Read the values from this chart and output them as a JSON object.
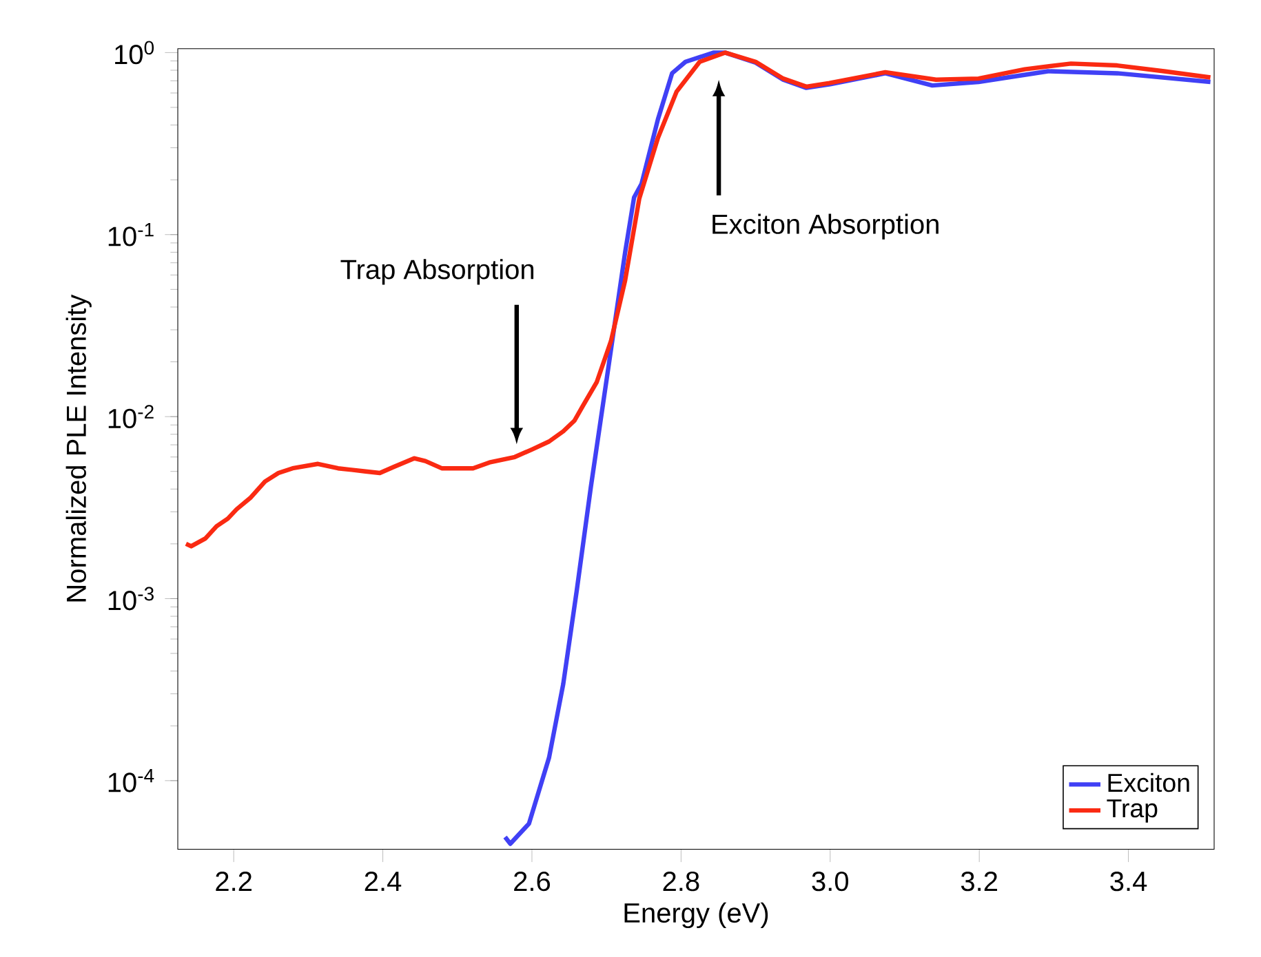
{
  "chart_data": {
    "type": "line",
    "xlabel": "Energy (eV)",
    "ylabel": "Normalized PLE Intensity",
    "xlim": [
      2.125,
      3.515
    ],
    "ylim": [
      4.2e-05,
      1.05
    ],
    "log": "y",
    "legend": "bottom right",
    "xticks": [
      2.2,
      2.4,
      2.6,
      2.8,
      {
        "value": 3.0,
        "label": "3.0"
      },
      3.2,
      3.4
    ],
    "yticks": [
      {
        "value": 0.0001,
        "label": "10$^{-4}$"
      },
      {
        "value": 0.001,
        "label": "10$^{-3}$"
      },
      {
        "value": 0.01,
        "label": "10$^{-2}$"
      },
      {
        "value": 0.1,
        "label": "10$^{-1}$"
      },
      {
        "value": 1,
        "label": "10$^{0}$"
      }
    ],
    "annotations": [
      "Trap Absorption",
      "Exciton Absorption"
    ],
    "series": [
      {
        "name": "Exciton",
        "color": "#4040f5",
        "x": [
          2.564,
          2.571,
          2.596,
          2.623,
          2.642,
          2.66,
          2.679,
          2.702,
          2.725,
          2.737,
          2.747,
          2.769,
          2.788,
          2.806,
          2.844,
          2.859,
          2.9,
          2.937,
          2.968,
          3.0,
          3.074,
          3.137,
          3.199,
          3.292,
          3.385,
          3.51
        ],
        "values": [
          4.9e-05,
          4.5e-05,
          5.8e-05,
          0.000134,
          0.00034,
          0.0011,
          0.0041,
          0.018,
          0.08,
          0.16,
          0.19,
          0.43,
          0.77,
          0.89,
          1.0,
          1.0,
          0.88,
          0.71,
          0.64,
          0.67,
          0.77,
          0.66,
          0.69,
          0.79,
          0.77,
          0.69
        ]
      },
      {
        "name": "Trap",
        "color": "#fa2a12",
        "x": [
          2.136,
          2.143,
          2.162,
          2.177,
          2.192,
          2.204,
          2.223,
          2.242,
          2.26,
          2.279,
          2.313,
          2.34,
          2.377,
          2.396,
          2.415,
          2.442,
          2.457,
          2.479,
          2.498,
          2.521,
          2.543,
          2.577,
          2.6,
          2.623,
          2.642,
          2.657,
          2.668,
          2.687,
          2.706,
          2.725,
          2.744,
          2.769,
          2.794,
          2.825,
          2.859,
          2.9,
          2.937,
          2.968,
          2.999,
          3.074,
          3.142,
          3.199,
          3.261,
          3.323,
          3.385,
          3.448,
          3.51
        ],
        "values": [
          0.002,
          0.00194,
          0.00214,
          0.0025,
          0.00275,
          0.0031,
          0.0036,
          0.0044,
          0.0049,
          0.0052,
          0.0055,
          0.0052,
          0.005,
          0.0049,
          0.0053,
          0.0059,
          0.0057,
          0.0052,
          0.0052,
          0.0052,
          0.0056,
          0.006,
          0.0066,
          0.0073,
          0.0083,
          0.0095,
          0.0114,
          0.0155,
          0.026,
          0.056,
          0.158,
          0.34,
          0.61,
          0.89,
          1.0,
          0.89,
          0.72,
          0.65,
          0.68,
          0.78,
          0.71,
          0.72,
          0.81,
          0.87,
          0.85,
          0.79,
          0.73
        ]
      }
    ]
  }
}
